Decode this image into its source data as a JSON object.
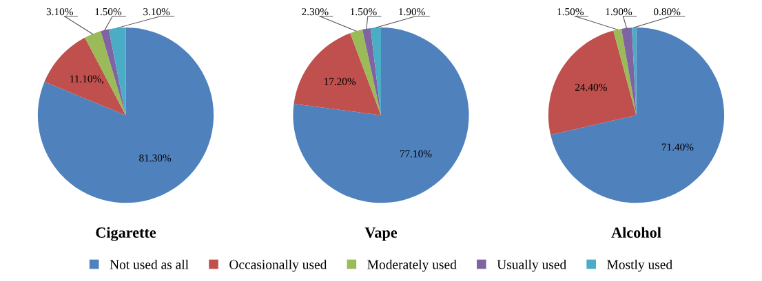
{
  "chart_data": [
    {
      "type": "pie",
      "title": "Cigarette",
      "categories": [
        "Not used as all",
        "Occasionally used",
        "Moderately used",
        "Usually used",
        "Mostly used"
      ],
      "values": [
        81.3,
        11.1,
        3.1,
        1.5,
        3.1
      ],
      "value_labels": [
        "81.30%",
        "11.10%,",
        "3.10%",
        "1.50%",
        "3.10%"
      ],
      "colors": [
        "#4f81bd",
        "#c0504d",
        "#9bbb59",
        "#8064a2",
        "#4bacc6"
      ],
      "legend": "bottom"
    },
    {
      "type": "pie",
      "title": "Vape",
      "categories": [
        null,
        null,
        null,
        null,
        null
      ],
      "values": [
        77.1,
        17.2,
        2.3,
        1.5,
        1.9
      ],
      "value_labels": [
        "77.10%",
        "17.20%",
        "2.30%",
        "1.50%",
        "1.90%"
      ],
      "colors": [
        "#4f81bd",
        "#c0504d",
        "#9bbb59",
        "#8064a2",
        "#4bacc6"
      ]
    },
    {
      "type": "pie",
      "title": "Alcohol",
      "categories": [
        null,
        null,
        null,
        null,
        null
      ],
      "values": [
        71.4,
        24.4,
        1.5,
        1.9,
        0.8
      ],
      "value_labels": [
        "71.40%",
        "24.40%",
        "1.50%",
        "1.90%",
        "0.80%"
      ],
      "colors": [
        "#4f81bd",
        "#c0504d",
        "#9bbb59",
        "#8064a2",
        "#4bacc6"
      ]
    }
  ]
}
